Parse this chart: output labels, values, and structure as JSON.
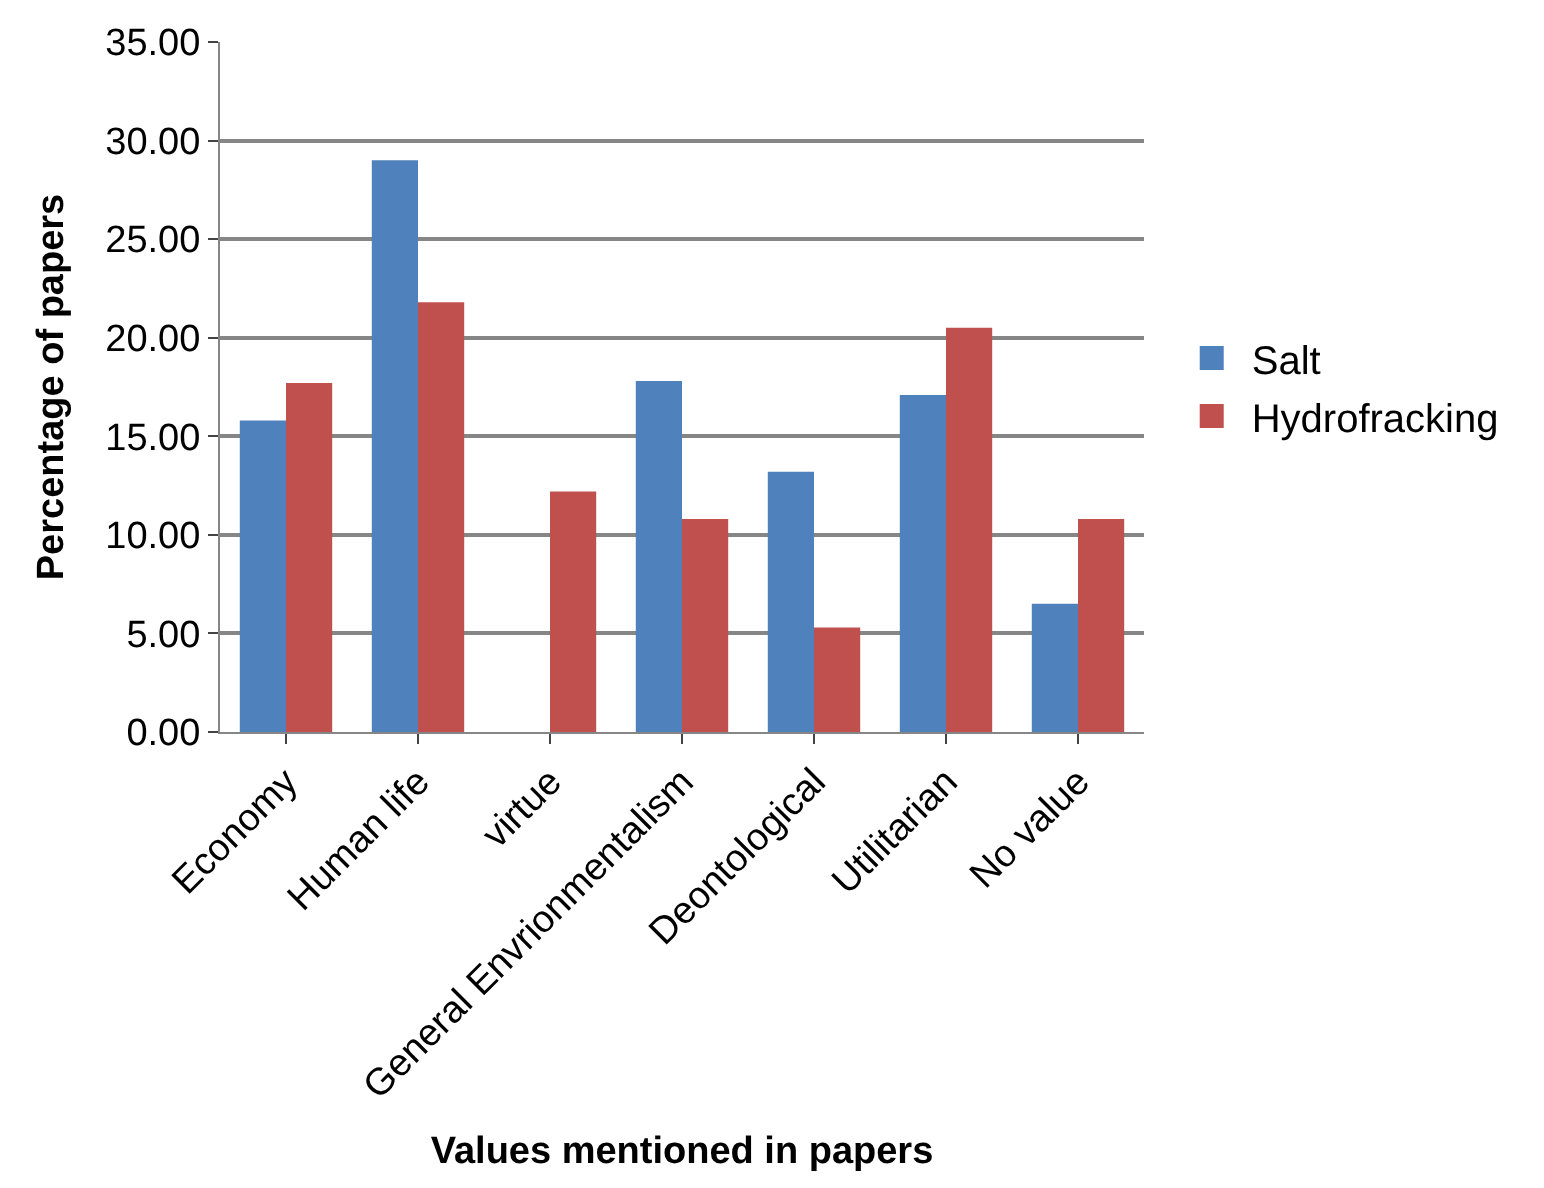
{
  "chart_data": {
    "type": "bar",
    "xlabel": "Values mentioned in papers",
    "ylabel": "Percentage of papers",
    "categories": [
      "Economy",
      "Human life",
      "virtue",
      "General Envrionmentalism",
      "Deontological",
      "Utilitarian",
      "No value"
    ],
    "series": [
      {
        "name": "Salt",
        "color": "#4f81bd",
        "values": [
          15.8,
          29.0,
          0,
          17.8,
          13.2,
          17.1,
          6.5
        ]
      },
      {
        "name": "Hydrofracking",
        "color": "#c0504d",
        "values": [
          17.7,
          21.8,
          12.2,
          10.8,
          5.3,
          20.5,
          10.8
        ]
      }
    ],
    "ylim": [
      0,
      35
    ],
    "yticks": [
      {
        "value": 0,
        "label": "0.00"
      },
      {
        "value": 5,
        "label": "5.00"
      },
      {
        "value": 10,
        "label": "10.00"
      },
      {
        "value": 15,
        "label": "15.00"
      },
      {
        "value": 20,
        "label": "20.00"
      },
      {
        "value": 25,
        "label": "25.00"
      },
      {
        "value": 30,
        "label": "30.00"
      },
      {
        "value": 35,
        "label": "35.00"
      }
    ],
    "grid": "y",
    "legend": "right"
  }
}
